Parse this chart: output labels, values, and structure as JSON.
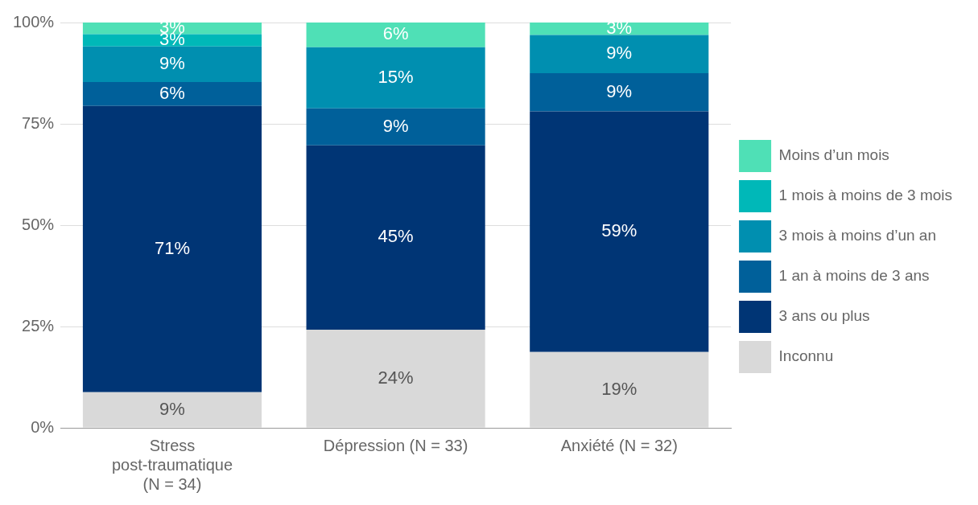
{
  "chart_data": {
    "type": "bar",
    "stacked": true,
    "categories": [
      "Stress post-traumatique (N = 34)",
      "Dépression (N = 33)",
      "Anxiété (N = 32)"
    ],
    "series": [
      {
        "name": "Inconnu",
        "color": "#d9d9d9",
        "values": [
          8.8,
          24.2,
          18.7
        ],
        "value_labels": [
          "9%",
          "24%",
          "19%"
        ]
      },
      {
        "name": "3 ans ou plus",
        "color": "#003575",
        "values": [
          70.6,
          45.5,
          59.4
        ],
        "value_labels": [
          "71%",
          "45%",
          "59%"
        ]
      },
      {
        "name": "1 an à moins de 3 ans",
        "color": "#00609a",
        "values": [
          5.9,
          9.1,
          9.4
        ],
        "value_labels": [
          "6%",
          "9%",
          "9%"
        ]
      },
      {
        "name": "3 mois à moins d’un an",
        "color": "#008fb0",
        "values": [
          8.8,
          15.1,
          9.4
        ],
        "value_labels": [
          "9%",
          "15%",
          "9%"
        ]
      },
      {
        "name": "1 mois à moins de 3 mois",
        "color": "#00b8b8",
        "values": [
          3.0,
          0,
          0
        ],
        "value_labels": [
          "3%",
          null,
          null
        ]
      },
      {
        "name": "Moins d’un mois",
        "color": "#4fe0b6",
        "values": [
          2.9,
          6.1,
          3.1
        ],
        "value_labels": [
          "3%",
          "6%",
          "3%"
        ]
      }
    ],
    "ylim": [
      0,
      100
    ],
    "yticks": [
      {
        "value": 0,
        "label": "0%"
      },
      {
        "value": 25,
        "label": "25%"
      },
      {
        "value": 50,
        "label": "50%"
      },
      {
        "value": 75,
        "label": "75%"
      },
      {
        "value": 100,
        "label": "100%"
      }
    ],
    "grid": "y",
    "legend": "right"
  }
}
